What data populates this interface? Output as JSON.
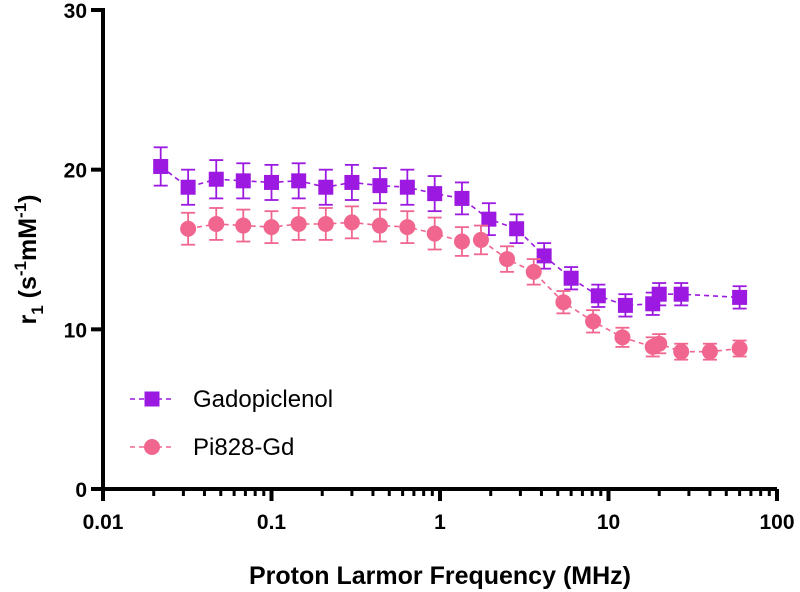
{
  "chart_data": {
    "type": "scatter",
    "xscale": "log",
    "xlim": [
      0.01,
      100
    ],
    "ylim": [
      0,
      30
    ],
    "xticks": [
      {
        "value": 0.01,
        "label": "0.01"
      },
      {
        "value": 0.1,
        "label": "0.1"
      },
      {
        "value": 1,
        "label": "1"
      },
      {
        "value": 10,
        "label": "10"
      },
      {
        "value": 100,
        "label": "100"
      }
    ],
    "yticks": [
      {
        "value": 0,
        "label": "0"
      },
      {
        "value": 10,
        "label": "10"
      },
      {
        "value": 20,
        "label": "20"
      },
      {
        "value": 30,
        "label": "30"
      }
    ],
    "xlabel": "Proton Larmor Frequency (MHz)",
    "ylabel": {
      "base": "r",
      "sub": "1",
      "open": " (s",
      "sup1": "-1",
      "mid": "mM",
      "sup2": "-1",
      "close": ")"
    },
    "legend_position": "bottom-left",
    "series": [
      {
        "name": "Gadopiclenol",
        "color": "#9b19e0",
        "marker": "square",
        "x": [
          0.022,
          0.032,
          0.047,
          0.068,
          0.1,
          0.145,
          0.21,
          0.3,
          0.44,
          0.64,
          0.93,
          1.35,
          1.95,
          2.85,
          4.15,
          6.0,
          8.7,
          12.6,
          18.3,
          20.0,
          27.0,
          60.0
        ],
        "y": [
          20.2,
          18.9,
          19.4,
          19.3,
          19.2,
          19.3,
          18.9,
          19.2,
          19.0,
          18.9,
          18.5,
          18.2,
          16.9,
          16.3,
          14.6,
          13.2,
          12.1,
          11.5,
          11.6,
          12.2,
          12.2,
          12.0
        ],
        "err": [
          1.2,
          1.1,
          1.2,
          1.1,
          1.1,
          1.1,
          1.1,
          1.1,
          1.1,
          1.1,
          1.1,
          1.0,
          1.0,
          0.9,
          0.8,
          0.7,
          0.7,
          0.7,
          0.7,
          0.7,
          0.7,
          0.7
        ]
      },
      {
        "name": "Pi828-Gd",
        "color": "#f0668e",
        "marker": "circle",
        "x": [
          0.032,
          0.047,
          0.068,
          0.1,
          0.145,
          0.21,
          0.3,
          0.44,
          0.64,
          0.93,
          1.35,
          1.75,
          2.5,
          3.6,
          5.4,
          8.1,
          12.1,
          18.3,
          20.0,
          27.0,
          40.0,
          60.0
        ],
        "y": [
          16.3,
          16.6,
          16.5,
          16.4,
          16.6,
          16.6,
          16.7,
          16.5,
          16.4,
          16.0,
          15.5,
          15.6,
          14.4,
          13.6,
          11.7,
          10.5,
          9.5,
          8.9,
          9.1,
          8.6,
          8.6,
          8.8
        ],
        "err": [
          1.0,
          1.0,
          1.0,
          1.0,
          1.0,
          1.0,
          1.0,
          1.0,
          1.0,
          1.0,
          0.9,
          0.9,
          0.8,
          0.8,
          0.7,
          0.7,
          0.6,
          0.6,
          0.6,
          0.5,
          0.5,
          0.5
        ]
      }
    ]
  }
}
